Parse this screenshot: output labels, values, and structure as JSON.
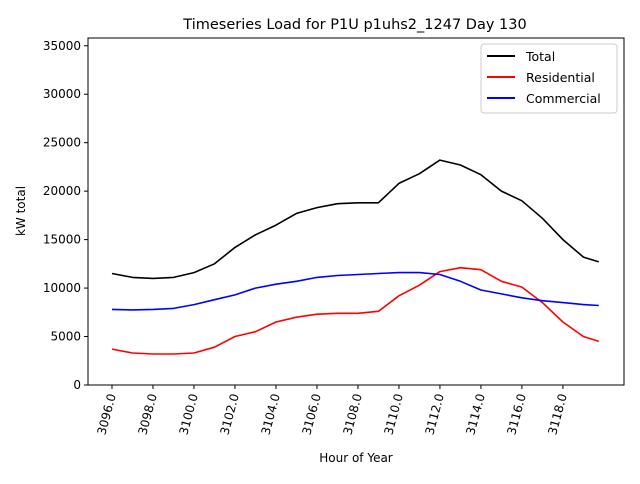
{
  "chart_data": {
    "type": "line",
    "title": "Timeseries Load for P1U p1uhs2_1247  Day 130",
    "xlabel": "Hour of Year",
    "ylabel": "kW total",
    "xlim": [
      3094.83,
      3120.98
    ],
    "ylim": [
      0,
      35800
    ],
    "xticks": [
      3096,
      3098,
      3100,
      3102,
      3104,
      3106,
      3108,
      3110,
      3112,
      3114,
      3116,
      3118
    ],
    "xtick_labels": [
      "3096.0",
      "3098.0",
      "3100.0",
      "3102.0",
      "3104.0",
      "3106.0",
      "3108.0",
      "3110.0",
      "3112.0",
      "3114.0",
      "3116.0",
      "3118.0"
    ],
    "yticks": [
      0,
      5000,
      10000,
      15000,
      20000,
      25000,
      30000,
      35000
    ],
    "ytick_labels": [
      "0",
      "5000",
      "10000",
      "15000",
      "20000",
      "25000",
      "30000",
      "35000"
    ],
    "grid": false,
    "legend_position": "top-right",
    "x": [
      3096,
      3097,
      3098,
      3099,
      3100,
      3101,
      3102,
      3103,
      3104,
      3105,
      3106,
      3107,
      3108,
      3109,
      3110,
      3111,
      3112,
      3113,
      3114,
      3115,
      3116,
      3117,
      3118,
      3119,
      3119.75
    ],
    "series": [
      {
        "name": "Total",
        "color": "#000000",
        "values": [
          11500,
          11100,
          11000,
          11100,
          11600,
          12500,
          14200,
          15500,
          16500,
          17700,
          18300,
          18700,
          18800,
          18800,
          20800,
          21800,
          23200,
          22700,
          21700,
          20000,
          19000,
          17200,
          15000,
          13200,
          12700
        ]
      },
      {
        "name": "Residential",
        "color": "#ff0000",
        "values": [
          3700,
          3300,
          3200,
          3200,
          3300,
          3900,
          5000,
          5500,
          6500,
          7000,
          7300,
          7400,
          7400,
          7600,
          9200,
          10300,
          11700,
          12100,
          11900,
          10700,
          10100,
          8500,
          6500,
          5000,
          4500
        ]
      },
      {
        "name": "Commercial",
        "color": "#0000ff",
        "values": [
          7800,
          7750,
          7800,
          7900,
          8300,
          8800,
          9300,
          10000,
          10400,
          10700,
          11100,
          11300,
          11400,
          11500,
          11600,
          11600,
          11400,
          10700,
          9800,
          9400,
          9000,
          8700,
          8500,
          8300,
          8200
        ]
      }
    ]
  }
}
